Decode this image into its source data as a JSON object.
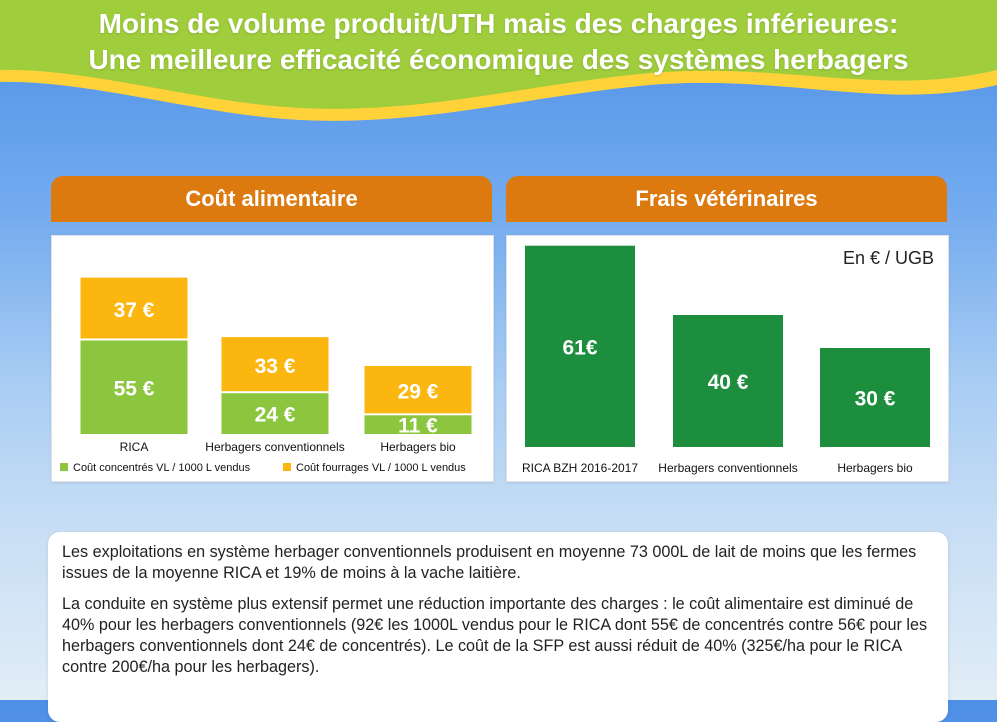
{
  "headline": {
    "line1": "Moins de volume produit/UTH mais des charges inférieures:",
    "line2": "Une meilleure efficacité économique des systèmes herbagers"
  },
  "colors": {
    "green_light": "#8cc63e",
    "yellow": "#fbb710",
    "green_dark": "#1d8e3e",
    "orange_header": "#dc7a0f"
  },
  "chart_data": [
    {
      "type": "bar",
      "stacked": true,
      "title": "Coût alimentaire",
      "categories": [
        "RICA",
        "Herbagers conventionnels",
        "Herbagers bio"
      ],
      "series": [
        {
          "name": "Coût concentrés VL / 1000 L vendus",
          "color": "#8cc63e",
          "values": [
            55,
            24,
            11
          ],
          "labels": [
            "55 €",
            "24 €",
            "11 €"
          ]
        },
        {
          "name": "Coût fourrages VL / 1000 L vendus",
          "color": "#fbb710",
          "values": [
            37,
            33,
            29
          ],
          "labels": [
            "37 €",
            "33 €",
            "29 €"
          ]
        }
      ],
      "legend_position": "bottom"
    },
    {
      "type": "bar",
      "title": "Frais vétérinaires",
      "unit": "En € / UGB",
      "categories": [
        "RICA BZH 2016-2017",
        "Herbagers conventionnels",
        "Herbagers bio"
      ],
      "values": [
        61,
        40,
        30
      ],
      "labels": [
        "61€",
        "40 €",
        "30 €"
      ],
      "color": "#1d8e3e"
    }
  ],
  "text": {
    "paragraph1": "Les exploitations en système herbager conventionnels produisent en moyenne 73 000L de lait de moins que les fermes issues de la moyenne RICA et 19% de moins à la vache laitière.",
    "paragraph2": "La conduite en système plus extensif permet une réduction importante des charges : le coût alimentaire est diminué de 40% pour les herbagers conventionnels (92€ les 1000L vendus pour le RICA dont 55€ de concentrés contre 56€ pour les herbagers conventionnels dont 24€ de concentrés). Le coût de la SFP est aussi réduit de 40% (325€/ha pour le RICA contre 200€/ha pour les herbagers)."
  }
}
